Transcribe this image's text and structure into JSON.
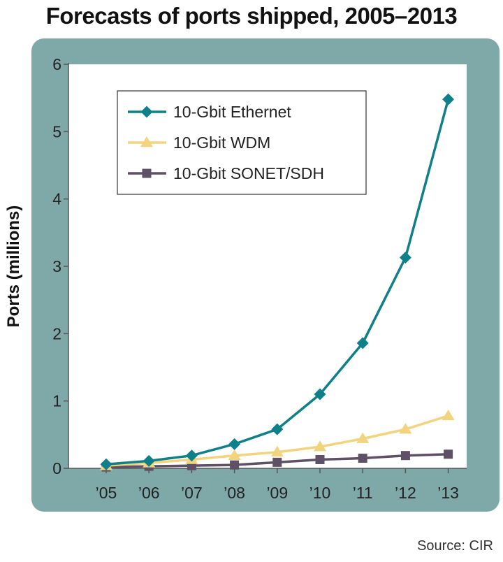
{
  "colors": {
    "frame": "#7fa8a9",
    "plot_bg": "#ffffff",
    "axis": "#555555",
    "ethernet": "#0f8089",
    "wdm": "#f2d47e",
    "sonet": "#5e5065"
  },
  "chart_data": {
    "type": "line",
    "title": "Forecasts of ports shipped, 2005–2013",
    "ylabel": "Ports (millions)",
    "xlabel": "",
    "categories": [
      "’05",
      "’06",
      "’07",
      "’08",
      "’09",
      "’10",
      "’11",
      "’12",
      "’13"
    ],
    "yticks": [
      "0",
      "1",
      "2",
      "3",
      "4",
      "5",
      "6"
    ],
    "ylim": [
      0,
      6
    ],
    "grid": false,
    "legend_position": "top-left",
    "series": [
      {
        "name": "10-Gbit Ethernet",
        "marker": "diamond",
        "color": "#0f8089",
        "values": [
          0.06,
          0.11,
          0.19,
          0.36,
          0.58,
          1.1,
          1.86,
          3.13,
          5.48
        ]
      },
      {
        "name": "10-Gbit WDM",
        "marker": "triangle",
        "color": "#f2d47e",
        "values": [
          0.04,
          0.08,
          0.13,
          0.19,
          0.24,
          0.32,
          0.44,
          0.58,
          0.78
        ]
      },
      {
        "name": "10-Gbit SONET/SDH",
        "marker": "square",
        "color": "#5e5065",
        "values": [
          0.02,
          0.03,
          0.04,
          0.05,
          0.09,
          0.13,
          0.15,
          0.19,
          0.21
        ]
      }
    ]
  },
  "source": "Source: CIR"
}
